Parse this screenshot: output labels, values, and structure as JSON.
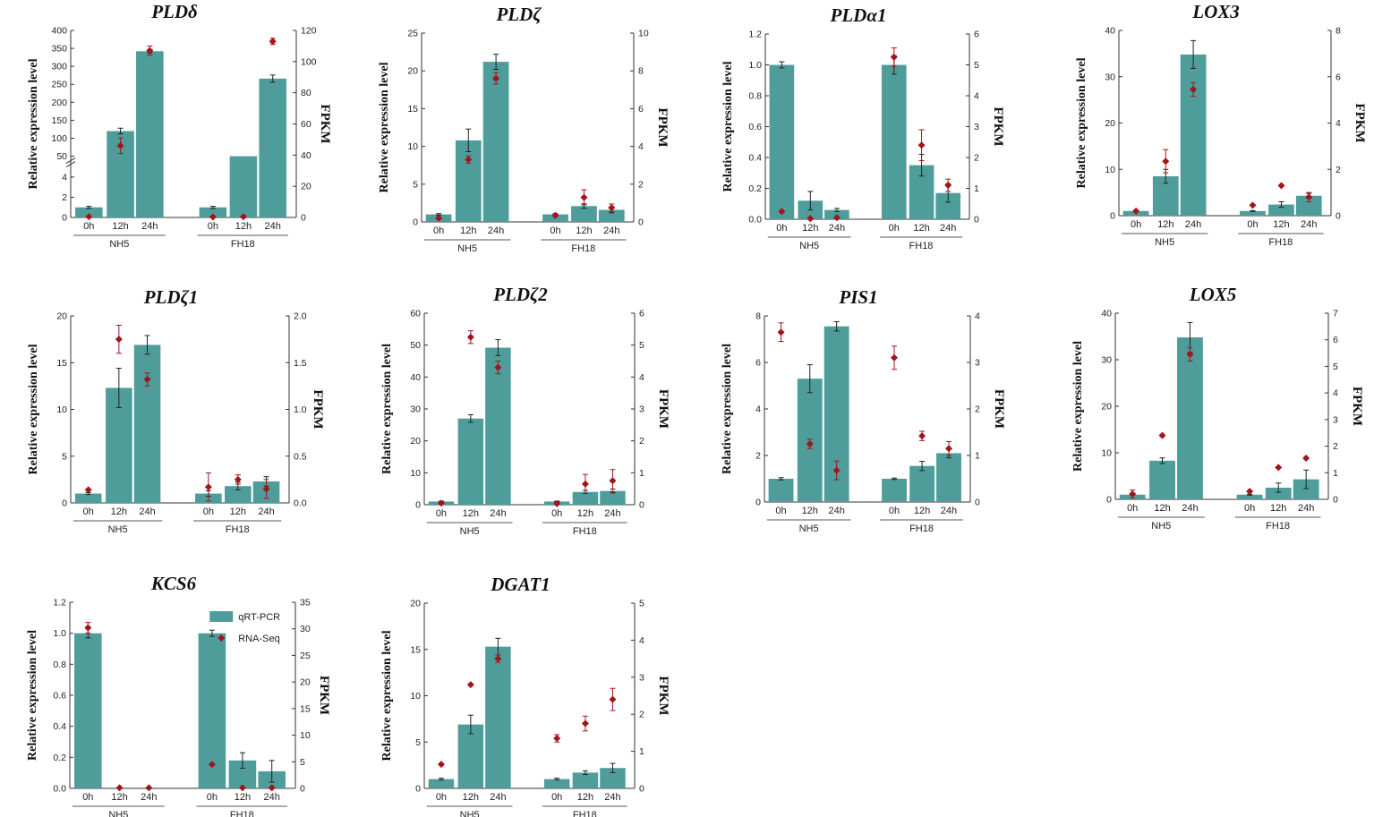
{
  "figure": {
    "colors": {
      "bar": "#4f9d9a",
      "marker": "#a3141a",
      "axis": "#333333",
      "text": "#111111"
    },
    "legend": {
      "bar_label": "qRT-PCR",
      "marker_label": "RNA-Seq"
    }
  },
  "chart_data": [
    {
      "type": "bar",
      "title": "PLDδ",
      "ylabel": "Relative expression level",
      "y2label": "FPKM",
      "categories": [
        "0h",
        "12h",
        "24h",
        "0h",
        "12h",
        "24h"
      ],
      "groups": [
        "NH5",
        "FH18"
      ],
      "broken_axis": true,
      "ylim": [
        0,
        400
      ],
      "y_break": [
        5,
        50
      ],
      "yticks": [
        0,
        2,
        4,
        50,
        100,
        150,
        200,
        250,
        300,
        350,
        400
      ],
      "y2lim": [
        0,
        120
      ],
      "y2ticks": [
        0,
        20,
        40,
        60,
        80,
        100,
        120
      ],
      "series": [
        {
          "name": "qRT-PCR",
          "values": [
            1,
            120,
            342,
            1,
            50,
            266
          ],
          "errors": [
            0.1,
            8,
            5,
            0.1,
            0,
            10
          ]
        },
        {
          "name": "RNA-Seq",
          "values": [
            0.5,
            46,
            107,
            0.3,
            0.4,
            113
          ],
          "errors": [
            0,
            5,
            3,
            0,
            0,
            2
          ]
        }
      ]
    },
    {
      "type": "bar",
      "title": "PLDζ",
      "ylabel": "Relative expression level",
      "y2label": "FPKM",
      "categories": [
        "0h",
        "12h",
        "24h",
        "0h",
        "12h",
        "24h"
      ],
      "groups": [
        "NH5",
        "FH18"
      ],
      "ylim": [
        0,
        25
      ],
      "yticks": [
        0,
        5,
        10,
        15,
        20,
        25
      ],
      "y2lim": [
        0,
        10
      ],
      "y2ticks": [
        0,
        2,
        4,
        6,
        8,
        10
      ],
      "series": [
        {
          "name": "qRT-PCR",
          "values": [
            1,
            10.8,
            21.2,
            1,
            2.1,
            1.6
          ],
          "errors": [
            0.1,
            1.5,
            1.0,
            0.1,
            0.3,
            0.4
          ]
        },
        {
          "name": "RNA-Seq",
          "values": [
            0.2,
            3.3,
            7.6,
            0.35,
            1.3,
            0.75
          ],
          "errors": [
            0.05,
            0.2,
            0.3,
            0.05,
            0.4,
            0.2
          ]
        }
      ]
    },
    {
      "type": "bar",
      "title": "PLDα1",
      "ylabel": "Relative expression level",
      "y2label": "FPKM",
      "categories": [
        "0h",
        "12h",
        "24h",
        "0h",
        "12h",
        "24h"
      ],
      "groups": [
        "NH5",
        "FH18"
      ],
      "ylim": [
        0,
        1.2
      ],
      "yticks": [
        0.0,
        0.2,
        0.4,
        0.6,
        0.8,
        1.0,
        1.2
      ],
      "y2lim": [
        0,
        6
      ],
      "y2ticks": [
        0,
        1,
        2,
        3,
        4,
        5,
        6
      ],
      "series": [
        {
          "name": "qRT-PCR",
          "values": [
            1.0,
            0.12,
            0.06,
            1.0,
            0.35,
            0.17
          ],
          "errors": [
            0.02,
            0.06,
            0.01,
            0.06,
            0.07,
            0.06
          ]
        },
        {
          "name": "RNA-Seq",
          "values": [
            0.25,
            0.02,
            0.05,
            5.25,
            2.4,
            1.1
          ],
          "errors": [
            0,
            0,
            0,
            0.3,
            0.5,
            0.2
          ]
        }
      ]
    },
    {
      "type": "bar",
      "title": "LOX3",
      "ylabel": "Relative expression level",
      "y2label": "FPKM",
      "categories": [
        "0h",
        "12h",
        "24h",
        "0h",
        "12h",
        "24h"
      ],
      "groups": [
        "NH5",
        "FH18"
      ],
      "ylim": [
        0,
        40
      ],
      "yticks": [
        0,
        10,
        20,
        30,
        40
      ],
      "y2lim": [
        0,
        8
      ],
      "y2ticks": [
        0,
        2,
        4,
        6,
        8
      ],
      "series": [
        {
          "name": "qRT-PCR",
          "values": [
            1,
            8.5,
            34.8,
            1,
            2.4,
            4.3
          ],
          "errors": [
            0.1,
            1.5,
            3.0,
            0.1,
            0.6,
            0.5
          ]
        },
        {
          "name": "RNA-Seq",
          "values": [
            0.2,
            2.35,
            5.45,
            0.45,
            1.3,
            0.8
          ],
          "errors": [
            0,
            0.5,
            0.3,
            0,
            0,
            0.2
          ]
        }
      ]
    },
    {
      "type": "bar",
      "title": "PLDζ1",
      "ylabel": "Relative expression level",
      "y2label": "FPKM",
      "categories": [
        "0h",
        "12h",
        "24h",
        "0h",
        "12h",
        "24h"
      ],
      "groups": [
        "NH5",
        "FH18"
      ],
      "ylim": [
        0,
        20
      ],
      "yticks": [
        0,
        5,
        10,
        15,
        20
      ],
      "y2lim": [
        0,
        2.0
      ],
      "y2ticks": [
        0.0,
        0.5,
        1.0,
        1.5,
        2.0
      ],
      "series": [
        {
          "name": "qRT-PCR",
          "values": [
            1,
            12.3,
            16.9,
            1,
            1.8,
            2.3
          ],
          "errors": [
            0.1,
            2.1,
            1.0,
            0.3,
            0.4,
            0.5
          ]
        },
        {
          "name": "RNA-Seq",
          "values": [
            0.14,
            1.75,
            1.32,
            0.17,
            0.25,
            0.15
          ],
          "errors": [
            0,
            0.15,
            0.07,
            0.15,
            0.05,
            0.1
          ]
        }
      ]
    },
    {
      "type": "bar",
      "title": "PLDζ2",
      "ylabel": "Relative expression level",
      "y2label": "FPKM",
      "categories": [
        "0h",
        "12h",
        "24h",
        "0h",
        "12h",
        "24h"
      ],
      "groups": [
        "NH5",
        "FH18"
      ],
      "ylim": [
        0,
        60
      ],
      "yticks": [
        0,
        10,
        20,
        30,
        40,
        50,
        60
      ],
      "y2lim": [
        0,
        6
      ],
      "y2ticks": [
        0,
        1,
        2,
        3,
        4,
        5,
        6
      ],
      "series": [
        {
          "name": "qRT-PCR",
          "values": [
            1,
            27,
            49.2,
            1,
            4,
            4.3
          ],
          "errors": [
            0.1,
            1.2,
            2.5,
            0.1,
            0.5,
            0.6
          ]
        },
        {
          "name": "RNA-Seq",
          "values": [
            0.05,
            5.25,
            4.3,
            0.03,
            0.65,
            0.75
          ],
          "errors": [
            0,
            0.2,
            0.2,
            0,
            0.3,
            0.35
          ]
        }
      ]
    },
    {
      "type": "bar",
      "title": "PIS1",
      "ylabel": "Relative expression level",
      "y2label": "FPKM",
      "categories": [
        "0h",
        "12h",
        "24h",
        "0h",
        "12h",
        "24h"
      ],
      "groups": [
        "NH5",
        "FH18"
      ],
      "ylim": [
        0,
        8
      ],
      "yticks": [
        0,
        2,
        4,
        6,
        8
      ],
      "y2lim": [
        0,
        4
      ],
      "y2ticks": [
        0,
        1,
        2,
        3,
        4
      ],
      "series": [
        {
          "name": "qRT-PCR",
          "values": [
            1,
            5.3,
            7.55,
            1,
            1.55,
            2.1
          ],
          "errors": [
            0.05,
            0.6,
            0.2,
            0.03,
            0.2,
            0.2
          ]
        },
        {
          "name": "RNA-Seq",
          "values": [
            3.65,
            1.25,
            0.68,
            3.1,
            1.42,
            1.15
          ],
          "errors": [
            0.2,
            0.1,
            0.2,
            0.25,
            0.1,
            0.15
          ]
        }
      ]
    },
    {
      "type": "bar",
      "title": "LOX5",
      "ylabel": "Relative expression level",
      "y2label": "FPKM",
      "categories": [
        "0h",
        "12h",
        "24h",
        "0h",
        "12h",
        "24h"
      ],
      "groups": [
        "NH5",
        "FH18"
      ],
      "ylim": [
        0,
        40
      ],
      "yticks": [
        0,
        10,
        20,
        30,
        40
      ],
      "y2lim": [
        0,
        7
      ],
      "y2ticks": [
        0,
        1,
        2,
        3,
        4,
        5,
        6,
        7
      ],
      "series": [
        {
          "name": "qRT-PCR",
          "values": [
            1,
            8.3,
            34.8,
            1,
            2.5,
            4.3
          ],
          "errors": [
            0.1,
            0.6,
            3.2,
            0.1,
            1.0,
            2.0
          ]
        },
        {
          "name": "RNA-Seq",
          "values": [
            0.2,
            2.4,
            5.45,
            0.3,
            1.2,
            1.55
          ],
          "errors": [
            0.15,
            0,
            0.25,
            0,
            0,
            0
          ]
        }
      ]
    },
    {
      "type": "bar",
      "title": "KCS6",
      "ylabel": "Relative expression level",
      "y2label": "FPKM",
      "categories": [
        "0h",
        "12h",
        "24h",
        "0h",
        "12h",
        "24h"
      ],
      "groups": [
        "NH5",
        "FH18"
      ],
      "show_legend": true,
      "ylim": [
        0,
        1.2
      ],
      "yticks": [
        0.0,
        0.2,
        0.4,
        0.6,
        0.8,
        1.0,
        1.2
      ],
      "y2lim": [
        0,
        35
      ],
      "y2ticks": [
        0,
        5,
        10,
        15,
        20,
        25,
        30,
        35
      ],
      "series": [
        {
          "name": "qRT-PCR",
          "values": [
            1.0,
            0,
            0,
            1.0,
            0.18,
            0.11
          ],
          "errors": [
            0.03,
            0,
            0,
            0.02,
            0.05,
            0.07
          ]
        },
        {
          "name": "RNA-Seq",
          "values": [
            30.2,
            0.1,
            0.1,
            4.5,
            0.1,
            0.1
          ],
          "errors": [
            1.0,
            0,
            0,
            0,
            0,
            0
          ]
        }
      ]
    },
    {
      "type": "bar",
      "title": "DGAT1",
      "ylabel": "Relative expression level",
      "y2label": "FPKM",
      "categories": [
        "0h",
        "12h",
        "24h",
        "0h",
        "12h",
        "24h"
      ],
      "groups": [
        "NH5",
        "FH18"
      ],
      "ylim": [
        0,
        20
      ],
      "yticks": [
        0,
        5,
        10,
        15,
        20
      ],
      "y2lim": [
        0,
        5
      ],
      "y2ticks": [
        0,
        1,
        2,
        3,
        4,
        5
      ],
      "series": [
        {
          "name": "qRT-PCR",
          "values": [
            1,
            6.9,
            15.3,
            1,
            1.7,
            2.2
          ],
          "errors": [
            0.1,
            1.0,
            0.9,
            0.1,
            0.2,
            0.5
          ]
        },
        {
          "name": "RNA-Seq",
          "values": [
            0.65,
            2.8,
            3.5,
            1.35,
            1.75,
            2.4
          ],
          "errors": [
            0,
            0,
            0.1,
            0.1,
            0.2,
            0.3
          ]
        }
      ]
    }
  ]
}
